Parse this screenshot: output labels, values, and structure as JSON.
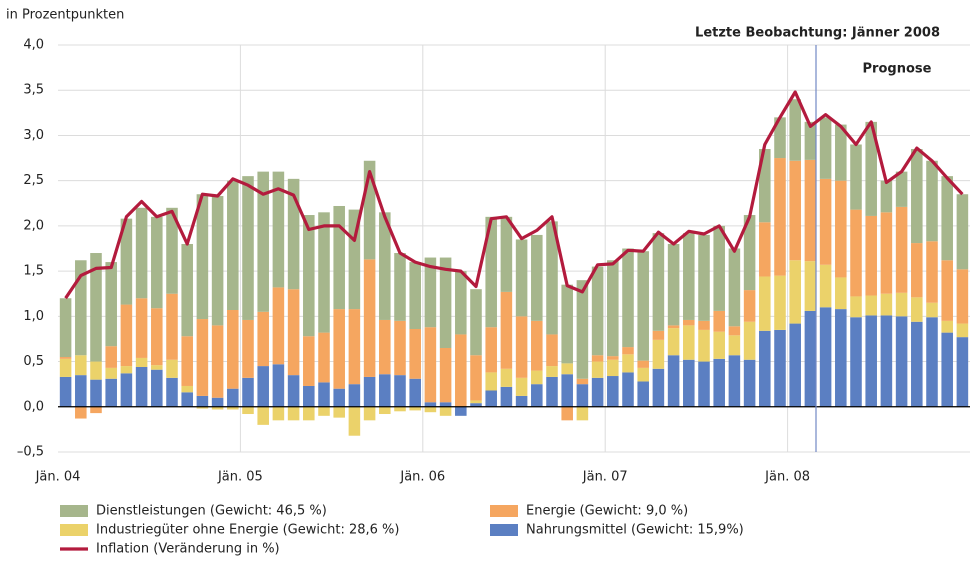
{
  "chart_data": {
    "type": "bar",
    "y_label": "in Prozentpunkten",
    "annotations": [
      "Letzte Beobachtung: Jänner 2008",
      "Prognose"
    ],
    "stacked": true,
    "categories": [
      "Jän. 04",
      null,
      null,
      null,
      null,
      null,
      null,
      null,
      null,
      null,
      null,
      null,
      "Jän. 05",
      null,
      null,
      null,
      null,
      null,
      null,
      null,
      null,
      null,
      null,
      null,
      "Jän. 06",
      null,
      null,
      null,
      null,
      null,
      null,
      null,
      null,
      null,
      null,
      null,
      "Jän. 07",
      null,
      null,
      null,
      null,
      null,
      null,
      null,
      null,
      null,
      null,
      null,
      "Jän. 08",
      null,
      null,
      null,
      null,
      null,
      null,
      null,
      null,
      null,
      null,
      null
    ],
    "series": [
      {
        "name": "Nahrungsmittel (Gewicht: 15,9%)",
        "color": "#5b7fc2",
        "values": [
          0.33,
          0.35,
          0.3,
          0.31,
          0.37,
          0.44,
          0.41,
          0.32,
          0.16,
          0.12,
          0.1,
          0.2,
          0.32,
          0.45,
          0.47,
          0.35,
          0.23,
          0.27,
          0.2,
          0.25,
          0.33,
          0.36,
          0.35,
          0.31,
          0.05,
          0.05,
          -0.1,
          0.04,
          0.18,
          0.22,
          0.12,
          0.25,
          0.33,
          0.36,
          0.25,
          0.32,
          0.34,
          0.38,
          0.28,
          0.42,
          0.57,
          0.52,
          0.5,
          0.53,
          0.57,
          0.52,
          0.84,
          0.85,
          0.92,
          1.06,
          1.1,
          1.08,
          0.99,
          1.01,
          1.01,
          1.0,
          0.94,
          0.99,
          0.82,
          0.77
        ]
      },
      {
        "name": "Industriegüter ohne Energie (Gewicht: 28,6 %)",
        "color": "#ebd26a",
        "values": [
          0.2,
          0.22,
          0.2,
          0.12,
          0.08,
          0.1,
          0.05,
          0.2,
          0.07,
          -0.02,
          -0.03,
          -0.03,
          -0.08,
          -0.2,
          -0.15,
          -0.15,
          -0.15,
          -0.1,
          -0.12,
          -0.32,
          -0.15,
          -0.08,
          -0.05,
          -0.04,
          -0.06,
          -0.1,
          0.0,
          0.03,
          0.2,
          0.2,
          0.2,
          0.15,
          0.12,
          0.12,
          -0.15,
          0.18,
          0.18,
          0.2,
          0.15,
          0.32,
          0.3,
          0.38,
          0.35,
          0.3,
          0.22,
          0.42,
          0.6,
          0.6,
          0.7,
          0.55,
          0.47,
          0.35,
          0.23,
          0.22,
          0.24,
          0.26,
          0.27,
          0.16,
          0.13,
          0.15
        ]
      },
      {
        "name": "Energie (Gewicht: 9,0 %)",
        "color": "#f5a660",
        "values": [
          0.02,
          -0.13,
          -0.07,
          0.24,
          0.68,
          0.66,
          0.63,
          0.73,
          0.55,
          0.85,
          0.8,
          0.87,
          0.64,
          0.6,
          0.85,
          0.95,
          0.55,
          0.55,
          0.88,
          0.83,
          1.3,
          0.6,
          0.6,
          0.55,
          0.83,
          0.6,
          0.8,
          0.5,
          0.5,
          0.85,
          0.68,
          0.55,
          0.35,
          -0.15,
          0.06,
          0.07,
          0.04,
          0.08,
          0.08,
          0.1,
          0.03,
          0.06,
          0.1,
          0.23,
          0.1,
          0.35,
          0.6,
          1.3,
          1.1,
          1.12,
          0.95,
          1.07,
          0.96,
          0.88,
          0.9,
          0.95,
          0.6,
          0.68,
          0.67,
          0.6
        ]
      },
      {
        "name": "Dienstleistungen (Gewicht: 46,5 %)",
        "color": "#a6b68c",
        "values": [
          0.65,
          1.05,
          1.2,
          0.93,
          0.95,
          1.0,
          1.01,
          0.95,
          1.02,
          1.38,
          1.43,
          1.43,
          1.59,
          1.55,
          1.28,
          1.22,
          1.34,
          1.33,
          1.14,
          1.1,
          1.09,
          1.19,
          0.75,
          0.74,
          0.77,
          1.0,
          0.7,
          0.73,
          1.22,
          0.83,
          0.85,
          0.95,
          1.25,
          0.87,
          1.09,
          0.98,
          1.06,
          1.09,
          1.21,
          1.08,
          0.9,
          0.96,
          0.95,
          0.94,
          0.86,
          0.83,
          0.81,
          0.45,
          0.68,
          0.42,
          0.68,
          0.62,
          0.72,
          1.04,
          0.35,
          0.39,
          1.04,
          0.89,
          0.93,
          0.83
        ]
      },
      {
        "name": "Inflation (Veränderung in %)",
        "type": "line",
        "color": "#b31b3d",
        "values": [
          1.2,
          1.45,
          1.53,
          1.54,
          2.1,
          2.27,
          2.1,
          2.16,
          1.8,
          2.35,
          2.33,
          2.52,
          2.45,
          2.35,
          2.41,
          2.34,
          1.96,
          2.0,
          2.0,
          1.84,
          2.6,
          2.1,
          1.7,
          1.6,
          1.55,
          1.52,
          1.5,
          1.33,
          2.08,
          2.1,
          1.86,
          1.95,
          2.1,
          1.34,
          1.27,
          1.57,
          1.58,
          1.73,
          1.72,
          1.93,
          1.8,
          1.94,
          1.91,
          2.0,
          1.72,
          2.1,
          2.9,
          3.2,
          3.48,
          3.1,
          3.23,
          3.1,
          2.9,
          3.15,
          2.48,
          2.6,
          2.86,
          2.72,
          2.53,
          2.35
        ]
      }
    ],
    "ylim": [
      -0.5,
      4.0
    ],
    "yticks": [
      {
        "value": -0.5,
        "label": "–0,5"
      },
      {
        "value": 0,
        "label": "0,0"
      },
      {
        "value": 0.5,
        "label": "0,5"
      },
      {
        "value": 1,
        "label": "1,0"
      },
      {
        "value": 1.5,
        "label": "1,5"
      },
      {
        "value": 2,
        "label": "2,0"
      },
      {
        "value": 2.5,
        "label": "2,5"
      },
      {
        "value": 3,
        "label": "3,0"
      },
      {
        "value": 3.5,
        "label": "3,5"
      },
      {
        "value": 4,
        "label": "4,0"
      }
    ],
    "grid": true
  }
}
